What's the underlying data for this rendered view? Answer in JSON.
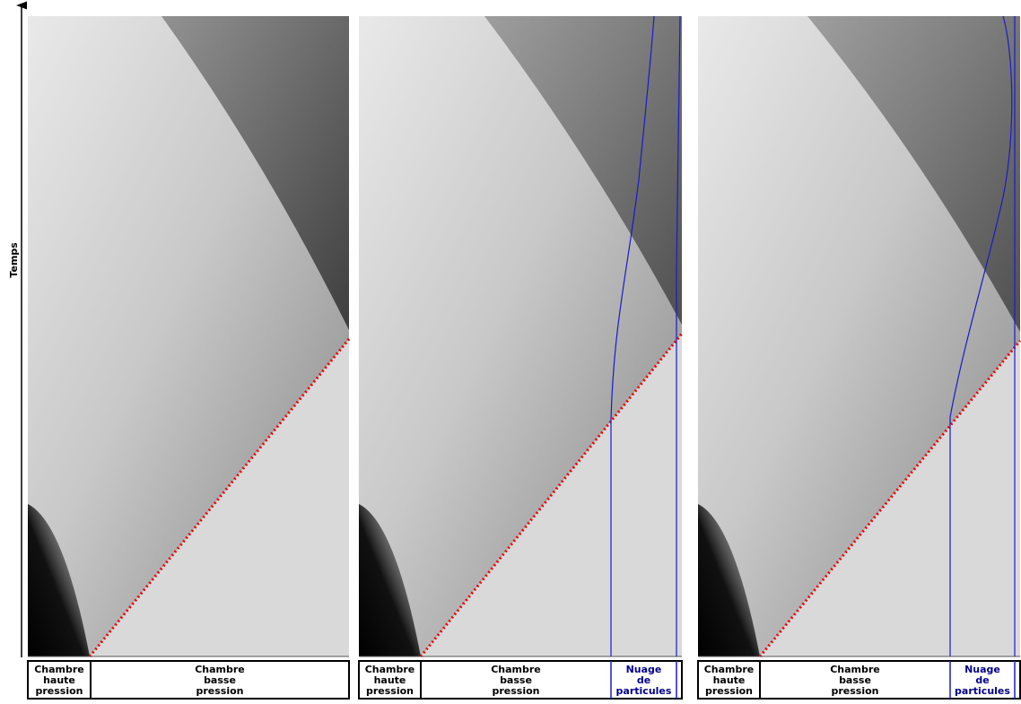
{
  "axis_label": "Temps",
  "panels": [
    {
      "cells": [
        [
          "Chambre",
          "haute",
          "pression"
        ],
        [
          "Chambre",
          "basse",
          "pression"
        ]
      ]
    },
    {
      "cells": [
        [
          "Chambre",
          "haute",
          "pression"
        ],
        [
          "Chambre",
          "basse",
          "pression"
        ],
        [
          "Nuage",
          "de",
          "particules"
        ]
      ]
    },
    {
      "cells": [
        [
          "Chambre",
          "haute",
          "pression"
        ],
        [
          "Chambre",
          "basse",
          "pression"
        ],
        [
          "Nuage",
          "de",
          "particules"
        ]
      ]
    }
  ]
}
